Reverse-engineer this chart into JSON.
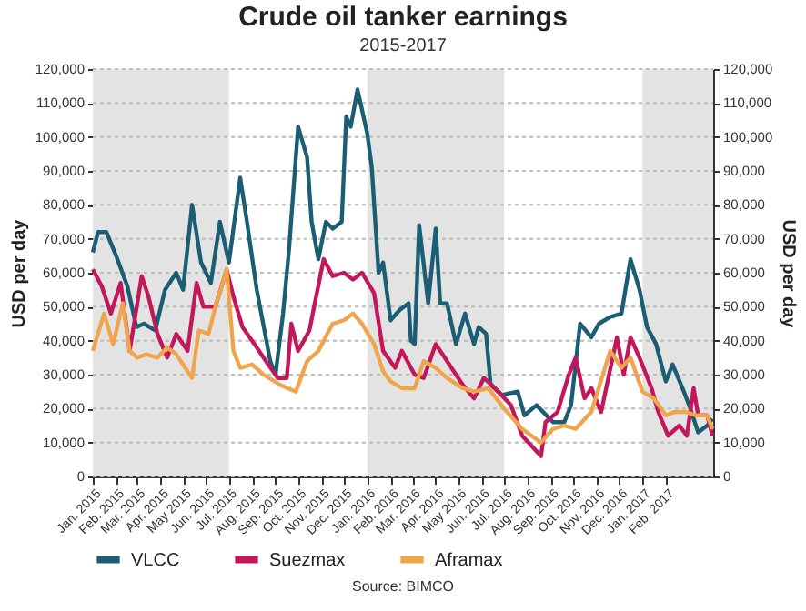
{
  "chart_data": {
    "type": "line",
    "title": "Crude oil tanker earnings",
    "subtitle": "2015-2017",
    "ylabel": "USD per day",
    "y2label": "USD per day",
    "annotations": [
      "Source: BIMCO"
    ],
    "xlim": [
      "2015-01-01",
      "2017-04-05"
    ],
    "xticks": [
      {
        "value": "2015-01-01",
        "label": "Jan. 2015"
      },
      {
        "value": "2015-02-01",
        "label": "Feb. 2015"
      },
      {
        "value": "2015-03-01",
        "label": "Mar. 2015"
      },
      {
        "value": "2015-04-01",
        "label": "Apr. 2015"
      },
      {
        "value": "2015-05-01",
        "label": "May 2015"
      },
      {
        "value": "2015-06-01",
        "label": "Jun. 2015"
      },
      {
        "value": "2015-07-01",
        "label": "Jul. 2015"
      },
      {
        "value": "2015-08-01",
        "label": "Aug. 2015"
      },
      {
        "value": "2015-09-01",
        "label": "Sep. 2015"
      },
      {
        "value": "2015-10-01",
        "label": "Oct. 2015"
      },
      {
        "value": "2015-11-01",
        "label": "Nov. 2015"
      },
      {
        "value": "2015-12-01",
        "label": "Dec. 2015"
      },
      {
        "value": "2016-01-01",
        "label": "Jan. 2016"
      },
      {
        "value": "2016-02-01",
        "label": "Feb. 2016"
      },
      {
        "value": "2016-03-01",
        "label": "Mar. 2016"
      },
      {
        "value": "2016-04-01",
        "label": "Apr. 2016"
      },
      {
        "value": "2016-05-01",
        "label": "May 2016"
      },
      {
        "value": "2016-06-01",
        "label": "Jun. 2016"
      },
      {
        "value": "2016-07-01",
        "label": "Jul. 2016"
      },
      {
        "value": "2016-08-01",
        "label": "Aug. 2016"
      },
      {
        "value": "2016-09-01",
        "label": "Sep. 2016"
      },
      {
        "value": "2016-10-01",
        "label": "Oct. 2016"
      },
      {
        "value": "2016-11-01",
        "label": "Nov. 2016"
      },
      {
        "value": "2016-12-01",
        "label": "Dec. 2016"
      },
      {
        "value": "2017-01-01",
        "label": "Jan. 2017"
      },
      {
        "value": "2017-02-01",
        "label": "Feb. 2017"
      }
    ],
    "ylim": [
      0,
      120000
    ],
    "yticks": [
      0,
      {
        "value": 10000,
        "label": "10,000"
      },
      {
        "value": 20000,
        "label": "20,000"
      },
      {
        "value": 30000,
        "label": "30,000"
      },
      {
        "value": 40000,
        "label": "40,000"
      },
      {
        "value": 50000,
        "label": "50,000"
      },
      {
        "value": 60000,
        "label": "60,000"
      },
      {
        "value": 70000,
        "label": "70,000"
      },
      {
        "value": 80000,
        "label": "80,000"
      },
      {
        "value": 90000,
        "label": "90,000"
      },
      {
        "value": 100000,
        "label": "100,000"
      },
      {
        "value": 110000,
        "label": "110,000"
      },
      {
        "value": 120000,
        "label": "120,000"
      }
    ],
    "y2lim": [
      0,
      120000
    ],
    "y2ticks": [
      0,
      {
        "value": 10000,
        "label": "10,000"
      },
      {
        "value": 20000,
        "label": "20,000"
      },
      {
        "value": 30000,
        "label": "30,000"
      },
      {
        "value": 40000,
        "label": "40,000"
      },
      {
        "value": 50000,
        "label": "50,000"
      },
      {
        "value": 60000,
        "label": "60,000"
      },
      {
        "value": 70000,
        "label": "70,000"
      },
      {
        "value": 80000,
        "label": "80,000"
      },
      {
        "value": 90000,
        "label": "90,000"
      },
      {
        "value": 100000,
        "label": "100,000"
      },
      {
        "value": 110000,
        "label": "110,000"
      },
      {
        "value": 120000,
        "label": "120,000"
      }
    ],
    "grid": "y",
    "legend": "bottom",
    "bands": [
      {
        "axis": "x",
        "from": "2015-01-01",
        "to": "2015-07-01",
        "color": "#e3e3e3"
      },
      {
        "axis": "x",
        "from": "2016-01-01",
        "to": "2016-07-01",
        "color": "#e3e3e3"
      },
      {
        "axis": "x",
        "from": "2017-01-01",
        "to": "2017-04-05",
        "color": "#e3e3e3"
      }
    ],
    "series": [
      {
        "name": "VLCC",
        "color": "#1b5e74",
        "x": [
          "2015-01-01",
          "2015-01-08",
          "2015-01-19",
          "2015-02-01",
          "2015-02-16",
          "2015-02-28",
          "2015-03-10",
          "2015-03-25",
          "2015-04-07",
          "2015-04-22",
          "2015-05-01",
          "2015-05-13",
          "2015-05-25",
          "2015-06-07",
          "2015-06-19",
          "2015-07-01",
          "2015-07-16",
          "2015-07-25",
          "2015-08-07",
          "2015-08-25",
          "2015-09-01",
          "2015-09-11",
          "2015-09-19",
          "2015-10-01",
          "2015-10-13",
          "2015-10-19",
          "2015-10-28",
          "2015-11-07",
          "2015-11-16",
          "2015-11-28",
          "2015-12-04",
          "2015-12-10",
          "2015-12-19",
          "2016-01-01",
          "2016-01-07",
          "2016-01-16",
          "2016-01-22",
          "2016-02-01",
          "2016-02-13",
          "2016-02-25",
          "2016-02-28",
          "2016-03-04",
          "2016-03-10",
          "2016-03-22",
          "2016-04-01",
          "2016-04-07",
          "2016-04-16",
          "2016-04-28",
          "2016-05-10",
          "2016-05-22",
          "2016-05-28",
          "2016-06-07",
          "2016-06-13",
          "2016-06-28",
          "2016-07-19",
          "2016-07-28",
          "2016-08-13",
          "2016-09-04",
          "2016-09-19",
          "2016-09-28",
          "2016-10-10",
          "2016-10-25",
          "2016-11-04",
          "2016-11-19",
          "2016-12-04",
          "2016-12-16",
          "2016-12-28",
          "2017-01-07",
          "2017-01-19",
          "2017-02-01",
          "2017-02-10",
          "2017-02-25",
          "2017-03-04",
          "2017-03-16",
          "2017-03-28",
          "2017-04-04"
        ],
        "values": [
          66000,
          72000,
          72000,
          65000,
          56000,
          44000,
          45000,
          43000,
          55000,
          60000,
          55000,
          80000,
          63000,
          57000,
          75000,
          63000,
          88000,
          75000,
          55000,
          34000,
          30000,
          48000,
          67000,
          103000,
          94000,
          75000,
          64000,
          75000,
          73000,
          75000,
          106000,
          103000,
          114000,
          101000,
          91000,
          60000,
          63000,
          46000,
          49000,
          51000,
          40000,
          39000,
          74000,
          51000,
          73000,
          51000,
          51000,
          39000,
          48000,
          39000,
          44000,
          42000,
          27000,
          24000,
          25000,
          18000,
          21000,
          16000,
          16000,
          21000,
          45000,
          41000,
          45000,
          47000,
          48000,
          64000,
          55000,
          44000,
          39000,
          28000,
          33000,
          25000,
          21000,
          13000,
          15000,
          17000
        ]
      },
      {
        "name": "Suezmax",
        "color": "#c2185b",
        "x": [
          "2015-01-01",
          "2015-01-13",
          "2015-01-25",
          "2015-02-07",
          "2015-02-19",
          "2015-03-07",
          "2015-03-16",
          "2015-03-28",
          "2015-04-10",
          "2015-04-22",
          "2015-05-07",
          "2015-05-19",
          "2015-05-28",
          "2015-06-13",
          "2015-06-28",
          "2015-07-07",
          "2015-07-19",
          "2015-08-04",
          "2015-08-19",
          "2015-09-04",
          "2015-09-16",
          "2015-09-22",
          "2015-10-01",
          "2015-10-16",
          "2015-11-04",
          "2015-11-16",
          "2015-12-01",
          "2015-12-13",
          "2015-12-25",
          "2016-01-10",
          "2016-01-22",
          "2016-02-07",
          "2016-02-16",
          "2016-03-04",
          "2016-03-16",
          "2016-04-01",
          "2016-04-16",
          "2016-05-07",
          "2016-05-22",
          "2016-06-04",
          "2016-06-19",
          "2016-07-10",
          "2016-07-25",
          "2016-08-19",
          "2016-08-25",
          "2016-09-10",
          "2016-09-25",
          "2016-10-04",
          "2016-10-16",
          "2016-10-25",
          "2016-11-07",
          "2016-11-28",
          "2016-12-07",
          "2016-12-16",
          "2016-12-28",
          "2017-01-13",
          "2017-01-22",
          "2017-02-04",
          "2017-02-19",
          "2017-03-01",
          "2017-03-10",
          "2017-03-16",
          "2017-03-28",
          "2017-04-04"
        ],
        "values": [
          61000,
          56000,
          48000,
          57000,
          37000,
          59000,
          53000,
          42000,
          35000,
          42000,
          37000,
          57000,
          50000,
          50000,
          61000,
          53000,
          44000,
          39000,
          34000,
          29000,
          29000,
          45000,
          37000,
          43000,
          64000,
          59000,
          60000,
          58000,
          60000,
          54000,
          37000,
          32000,
          37000,
          30000,
          29000,
          39000,
          34000,
          27000,
          23000,
          29000,
          26000,
          21000,
          12000,
          6000,
          16000,
          19000,
          30000,
          35000,
          23000,
          26000,
          19000,
          41000,
          30000,
          41000,
          35000,
          26000,
          19000,
          12000,
          15000,
          12000,
          26000,
          18000,
          18000,
          12000
        ]
      },
      {
        "name": "Aframax",
        "color": "#f0a54c",
        "x": [
          "2015-01-01",
          "2015-01-16",
          "2015-01-28",
          "2015-02-10",
          "2015-02-19",
          "2015-03-01",
          "2015-03-13",
          "2015-03-28",
          "2015-04-10",
          "2015-04-22",
          "2015-05-04",
          "2015-05-13",
          "2015-05-22",
          "2015-06-04",
          "2015-06-13",
          "2015-06-28",
          "2015-07-07",
          "2015-07-16",
          "2015-08-01",
          "2015-08-16",
          "2015-09-07",
          "2015-09-28",
          "2015-10-13",
          "2015-10-28",
          "2015-11-16",
          "2015-12-01",
          "2015-12-13",
          "2015-12-25",
          "2016-01-10",
          "2016-01-22",
          "2016-02-01",
          "2016-02-16",
          "2016-03-04",
          "2016-03-16",
          "2016-04-01",
          "2016-04-16",
          "2016-05-07",
          "2016-05-22",
          "2016-06-10",
          "2016-07-01",
          "2016-07-25",
          "2016-08-19",
          "2016-09-04",
          "2016-09-19",
          "2016-10-04",
          "2016-10-25",
          "2016-11-19",
          "2016-12-04",
          "2016-12-16",
          "2017-01-01",
          "2017-01-16",
          "2017-02-01",
          "2017-02-13",
          "2017-02-28",
          "2017-03-13",
          "2017-03-28",
          "2017-04-04"
        ],
        "values": [
          37000,
          48000,
          39000,
          51000,
          37000,
          35000,
          36000,
          35000,
          38000,
          36000,
          32000,
          29000,
          43000,
          42000,
          50000,
          61000,
          37000,
          32000,
          33000,
          30000,
          27000,
          25000,
          34000,
          37000,
          45000,
          46000,
          48000,
          45000,
          39000,
          31000,
          28000,
          26000,
          26000,
          34000,
          32000,
          29000,
          26000,
          25000,
          26000,
          20000,
          14000,
          10000,
          14000,
          15000,
          14000,
          19000,
          37000,
          32000,
          35000,
          25000,
          23000,
          18000,
          19000,
          19000,
          18000,
          18000,
          14000
        ]
      }
    ]
  }
}
